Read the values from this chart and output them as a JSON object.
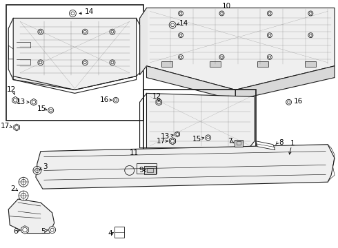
{
  "bg_color": "#ffffff",
  "line_color": "#1a1a1a",
  "fig_width": 4.9,
  "fig_height": 3.6,
  "dpi": 100,
  "lw": 0.8,
  "lw_thin": 0.45,
  "gray_fill": "#d8d8d8",
  "light_fill": "#efefef"
}
